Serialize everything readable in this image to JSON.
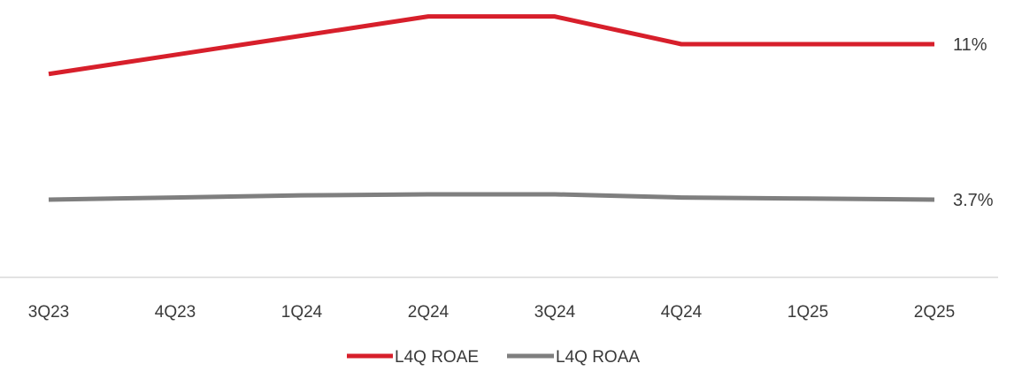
{
  "chart_data": {
    "type": "line",
    "categories": [
      "3Q23",
      "4Q23",
      "1Q24",
      "2Q24",
      "3Q24",
      "4Q24",
      "1Q25",
      "2Q25"
    ],
    "series": [
      {
        "name": "L4Q ROAE",
        "color": "#d71f2b",
        "values": [
          9.6,
          10.5,
          11.4,
          12.3,
          12.3,
          11.0,
          11.0,
          11.0
        ],
        "end_label": "11%"
      },
      {
        "name": "L4Q ROAA",
        "color": "#7f7f7f",
        "values": [
          3.7,
          3.8,
          3.9,
          3.95,
          3.95,
          3.8,
          3.75,
          3.7
        ],
        "end_label": "3.7%"
      }
    ],
    "grid": false,
    "legend_position": "bottom-center",
    "xlabel": "",
    "ylabel": ""
  }
}
